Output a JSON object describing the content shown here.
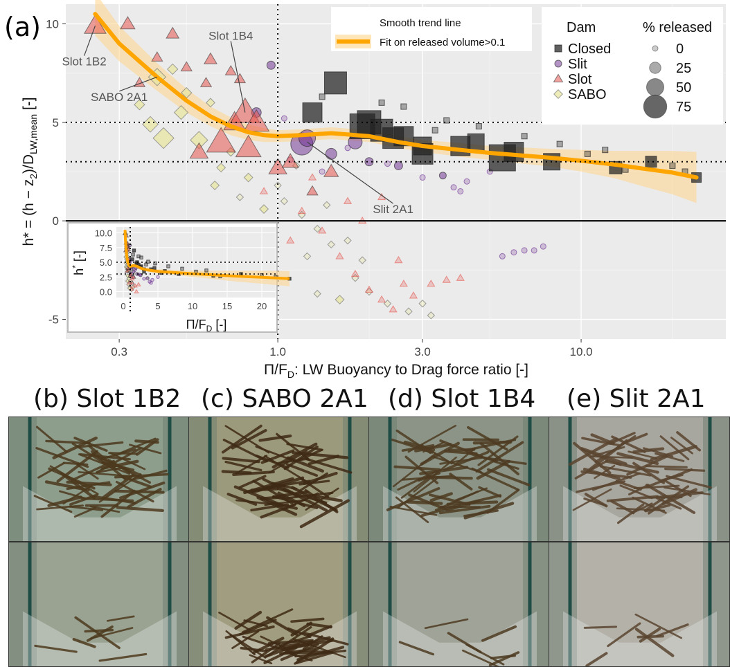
{
  "panel_a_label": "(a)",
  "chart_data": {
    "type": "scatter",
    "x_scale": "log",
    "xlabel_main": "Π/F",
    "xlabel_sub": "D",
    "xlabel_rest": ": LW Buoyancy to Drag force ratio [-]",
    "ylabel_main": "h* = (h − z",
    "ylabel_sub_2": "2",
    "ylabel_mid": ")/D",
    "ylabel_sub": "LW,mean",
    "ylabel_unit": " [-]",
    "xlim": [
      0.2,
      30
    ],
    "ylim": [
      -6,
      11
    ],
    "x_ticks": [
      0.3,
      1.0,
      3.0,
      10.0
    ],
    "x_tick_labels": [
      "0.3",
      "1.0",
      "3.0",
      "10.0"
    ],
    "y_ticks": [
      -5,
      0,
      5,
      10
    ],
    "y_tick_labels": [
      "-5",
      "0",
      "5",
      "10"
    ],
    "ref_lines": {
      "vertical_x": 1.0,
      "horizontal_dotted_y": [
        3,
        5
      ],
      "horizontal_solid_y": 0
    },
    "trend": {
      "label_title": "Smooth trend line",
      "label": "Fit on released volume>0.1",
      "color": "#FFA500",
      "x": [
        0.25,
        0.3,
        0.4,
        0.5,
        0.6,
        0.7,
        0.8,
        0.9,
        1.0,
        1.2,
        1.5,
        2.0,
        2.5,
        3.0,
        4.0,
        5.0,
        6.0,
        8.0,
        10.0,
        13.0,
        16.0,
        20.0,
        24.0
      ],
      "y": [
        10.5,
        9.0,
        7.3,
        6.1,
        5.3,
        4.8,
        4.5,
        4.35,
        4.3,
        4.35,
        4.45,
        4.3,
        4.0,
        3.8,
        3.6,
        3.45,
        3.35,
        3.2,
        3.05,
        2.85,
        2.65,
        2.45,
        2.2
      ],
      "band_halfwidth": [
        1.1,
        0.9,
        0.7,
        0.6,
        0.5,
        0.45,
        0.4,
        0.35,
        0.3,
        0.3,
        0.3,
        0.3,
        0.3,
        0.3,
        0.35,
        0.35,
        0.4,
        0.45,
        0.55,
        0.7,
        0.9,
        1.1,
        1.3
      ]
    },
    "series": [
      {
        "name": "Closed",
        "color": "#222222",
        "marker": "square",
        "points": [
          [
            1.3,
            5.5,
            50
          ],
          [
            1.55,
            7.0,
            60
          ],
          [
            1.9,
            4.8,
            70
          ],
          [
            2.0,
            5.0,
            65
          ],
          [
            2.2,
            4.6,
            60
          ],
          [
            2.4,
            4.2,
            55
          ],
          [
            2.6,
            4.3,
            50
          ],
          [
            3.0,
            3.4,
            55
          ],
          [
            3.0,
            3.8,
            45
          ],
          [
            4.0,
            3.8,
            50
          ],
          [
            4.5,
            4.0,
            40
          ],
          [
            5.5,
            3.2,
            75
          ],
          [
            6.0,
            3.5,
            50
          ],
          [
            8.0,
            3.0,
            40
          ],
          [
            13.0,
            2.7,
            25
          ],
          [
            17.0,
            3.0,
            20
          ],
          [
            24.0,
            2.2,
            15
          ],
          [
            1.4,
            6.3,
            0
          ],
          [
            2.2,
            6.0,
            0
          ],
          [
            2.6,
            5.8,
            0
          ],
          [
            3.3,
            4.6,
            0
          ],
          [
            3.6,
            5.1,
            0
          ],
          [
            4.6,
            4.8,
            0
          ],
          [
            6.5,
            4.3,
            0
          ],
          [
            8.5,
            3.9,
            0
          ],
          [
            10.5,
            3.4,
            0
          ],
          [
            12.0,
            3.6,
            0
          ],
          [
            14.0,
            2.6,
            0
          ],
          [
            20.0,
            2.8,
            0
          ],
          [
            22.0,
            2.5,
            0
          ]
        ]
      },
      {
        "name": "Slit",
        "color": "#6A2C91",
        "marker": "circle",
        "points": [
          [
            0.95,
            7.9,
            10
          ],
          [
            0.85,
            5.5,
            15
          ],
          [
            1.2,
            3.9,
            60
          ],
          [
            1.25,
            4.2,
            40
          ],
          [
            1.5,
            3.4,
            20
          ],
          [
            1.8,
            4.0,
            30
          ],
          [
            2.0,
            3.0,
            10
          ],
          [
            2.5,
            2.8,
            10
          ],
          [
            3.5,
            2.3,
            5
          ],
          [
            5.5,
            -1.8,
            0
          ],
          [
            6.0,
            -1.6,
            0
          ],
          [
            6.5,
            -1.5,
            0
          ],
          [
            7.0,
            -1.5,
            0
          ],
          [
            7.5,
            -1.3,
            0
          ],
          [
            4.0,
            1.5,
            0
          ],
          [
            4.2,
            2.0,
            0
          ],
          [
            5.0,
            2.5,
            0
          ],
          [
            1.1,
            3.1,
            0
          ],
          [
            1.4,
            2.5,
            0
          ],
          [
            2.3,
            2.9,
            0
          ],
          [
            1.7,
            3.7,
            0
          ],
          [
            3.0,
            2.2,
            0
          ],
          [
            1.05,
            5.2,
            0
          ],
          [
            3.8,
            1.7,
            0
          ]
        ]
      },
      {
        "name": "Slot",
        "color": "#E5534B",
        "marker": "triangle",
        "points": [
          [
            0.25,
            9.9,
            40
          ],
          [
            0.32,
            10.0,
            20
          ],
          [
            0.45,
            9.5,
            15
          ],
          [
            0.6,
            8.2,
            15
          ],
          [
            0.7,
            7.6,
            10
          ],
          [
            0.72,
            5.0,
            40
          ],
          [
            0.78,
            5.5,
            60
          ],
          [
            0.8,
            3.7,
            50
          ],
          [
            0.85,
            5.0,
            50
          ],
          [
            0.65,
            4.0,
            60
          ],
          [
            0.55,
            3.5,
            30
          ],
          [
            1.0,
            2.7,
            30
          ],
          [
            1.1,
            3.0,
            25
          ],
          [
            1.5,
            2.5,
            20
          ],
          [
            1.3,
            1.5,
            10
          ],
          [
            0.5,
            7.8,
            10
          ],
          [
            0.58,
            7.0,
            10
          ],
          [
            0.75,
            7.2,
            10
          ],
          [
            0.4,
            8.3,
            10
          ],
          [
            0.35,
            7.0,
            10
          ],
          [
            1.2,
            0.5,
            0
          ],
          [
            1.4,
            -0.5,
            0
          ],
          [
            1.6,
            -1.8,
            0
          ],
          [
            1.8,
            -2.7,
            0
          ],
          [
            2.0,
            -3.5,
            0
          ],
          [
            2.2,
            -4.0,
            0
          ],
          [
            2.4,
            -4.5,
            0
          ],
          [
            2.6,
            -3.2,
            0
          ],
          [
            2.8,
            -3.8,
            0
          ],
          [
            3.2,
            -3.2,
            0
          ],
          [
            3.6,
            -3.0,
            0
          ],
          [
            4.0,
            -2.9,
            0
          ],
          [
            1.9,
            0.0,
            0
          ],
          [
            2.2,
            1.2,
            0
          ],
          [
            1.7,
            1.0,
            0
          ],
          [
            1.3,
            2.2,
            0
          ],
          [
            0.9,
            1.5,
            0
          ],
          [
            1.1,
            -1.0,
            0
          ],
          [
            2.5,
            -2.0,
            0
          ]
        ]
      },
      {
        "name": "SABO",
        "color": "#E8E6A0",
        "marker": "diamond",
        "points": [
          [
            0.4,
            7.3,
            30
          ],
          [
            0.42,
            4.2,
            40
          ],
          [
            0.55,
            4.1,
            30
          ],
          [
            0.38,
            4.9,
            25
          ],
          [
            0.48,
            5.5,
            20
          ],
          [
            0.5,
            6.5,
            10
          ],
          [
            0.6,
            6.0,
            5
          ],
          [
            0.45,
            7.7,
            10
          ],
          [
            0.7,
            3.5,
            5
          ],
          [
            0.65,
            2.7,
            5
          ],
          [
            0.62,
            1.8,
            5
          ],
          [
            0.8,
            2.2,
            5
          ],
          [
            0.9,
            0.6,
            5
          ],
          [
            1.05,
            1.0,
            0
          ],
          [
            1.2,
            0.3,
            0
          ],
          [
            1.35,
            -0.4,
            0
          ],
          [
            1.5,
            -1.2,
            0
          ],
          [
            1.25,
            -1.8,
            0
          ],
          [
            1.7,
            -1.0,
            0
          ],
          [
            1.9,
            -2.0,
            0
          ],
          [
            1.35,
            -3.7,
            0
          ],
          [
            1.6,
            -4.0,
            5
          ],
          [
            2.0,
            -3.6,
            0
          ],
          [
            2.3,
            -4.2,
            0
          ],
          [
            2.7,
            -4.6,
            0
          ],
          [
            3.0,
            -4.2,
            0
          ],
          [
            3.2,
            -4.8,
            0
          ],
          [
            0.75,
            1.2,
            0
          ],
          [
            0.85,
            -0.4,
            0
          ],
          [
            0.95,
            -1.2,
            0
          ],
          [
            0.35,
            5.9,
            10
          ],
          [
            1.0,
            1.8,
            0
          ],
          [
            1.15,
            2.8,
            0
          ],
          [
            1.45,
            0.8,
            0
          ],
          [
            1.8,
            -2.9,
            0
          ]
        ]
      }
    ],
    "annotations": [
      {
        "text": "Slot 1B2",
        "x": 0.25,
        "y": 9.9,
        "tx": 0.23,
        "ty": 8.1
      },
      {
        "text": "SABO 2A1",
        "x": 0.4,
        "y": 7.3,
        "tx": 0.3,
        "ty": 6.3
      },
      {
        "text": "Slot 1B4",
        "x": 0.78,
        "y": 5.5,
        "tx": 0.7,
        "ty": 9.4
      },
      {
        "text": "Slit 2A1",
        "x": 1.25,
        "y": 4.0,
        "tx": 2.4,
        "ty": 0.6
      }
    ],
    "legend_dam": {
      "title": "Dam",
      "items": [
        "Closed",
        "Slit",
        "Slot",
        "SABO"
      ]
    },
    "legend_released": {
      "title": "% released",
      "values": [
        0,
        25,
        50,
        75
      ]
    },
    "inset": {
      "x_scale": "linear",
      "xlim": [
        -1,
        22
      ],
      "ylim": [
        -1,
        11
      ],
      "x_ticks": [
        0,
        5,
        10,
        15,
        20
      ],
      "x_tick_labels": [
        "0",
        "5",
        "10",
        "15",
        "20"
      ],
      "y_ticks": [
        0.0,
        2.5,
        5.0,
        7.5,
        10.0
      ],
      "y_tick_labels": [
        "0.0",
        "2.5",
        "5.0",
        "7.5",
        "10.0"
      ],
      "xlabel_main": "Π/F",
      "xlabel_sub": "D",
      "xlabel_rest": "  [-]",
      "ylabel_main": "h",
      "ylabel_sup": "*",
      "ylabel_rest": " [-]"
    }
  },
  "photos": [
    {
      "title": "(b) Slot 1B2",
      "top_tone": "#8e9e8c",
      "bottom_tone": "#9aa392",
      "debris": "#4d3a1e"
    },
    {
      "title": "(c) SABO 2A1",
      "top_tone": "#9c9a7c",
      "bottom_tone": "#a19d80",
      "debris": "#3f2a15"
    },
    {
      "title": "(d) Slot 1B4",
      "top_tone": "#8b9486",
      "bottom_tone": "#a0a498",
      "debris": "#4e3b22"
    },
    {
      "title": "(e) Slit 2A1",
      "top_tone": "#a8a79f",
      "bottom_tone": "#b3b1a8",
      "debris": "#5a4530"
    }
  ]
}
